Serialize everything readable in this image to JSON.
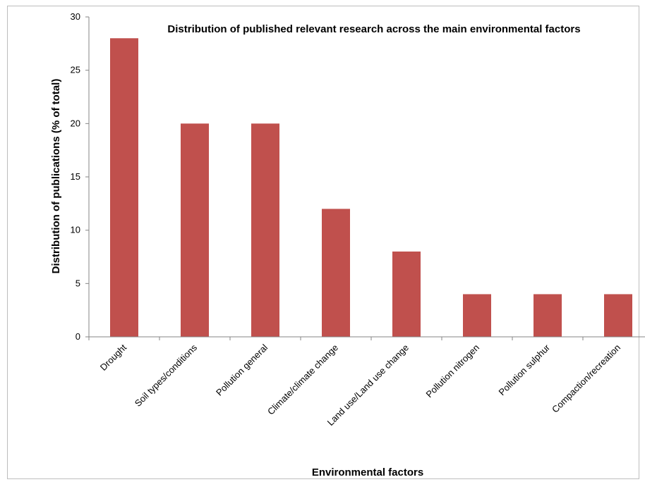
{
  "chart_data": {
    "type": "bar",
    "title": "Distribution of published relevant research across the main environmental factors",
    "xlabel": "Environmental factors",
    "ylabel": "Distribution of publications  (% of total)",
    "categories": [
      "Drought",
      "Soil types/conditions",
      "Pollution general",
      "Climate/climate change",
      "Land use/Land use change",
      "Pollution nitrogen",
      "Pollution sulphur",
      "Compaction/recreation"
    ],
    "values": [
      28,
      20,
      20,
      12,
      8,
      4,
      4,
      4
    ],
    "ylim": [
      0,
      30
    ],
    "yticks": [
      0,
      5,
      10,
      15,
      20,
      25,
      30
    ],
    "grid": false,
    "legend": "none",
    "bar_color": "#c0504d"
  }
}
